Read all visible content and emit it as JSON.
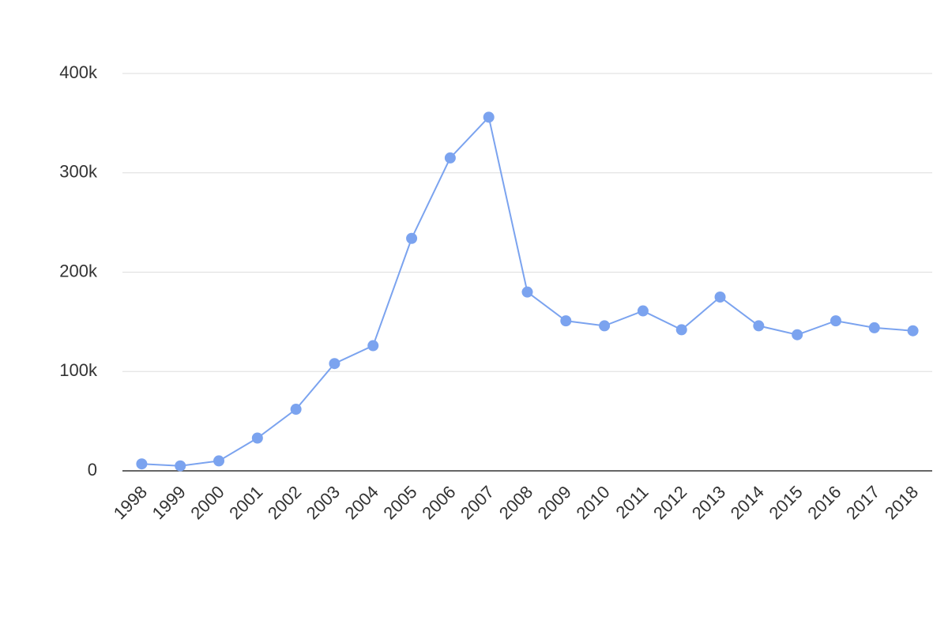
{
  "chart_data": {
    "type": "line",
    "categories": [
      "1998",
      "1999",
      "2000",
      "2001",
      "2002",
      "2003",
      "2004",
      "2005",
      "2006",
      "2007",
      "2008",
      "2009",
      "2010",
      "2011",
      "2012",
      "2013",
      "2014",
      "2015",
      "2016",
      "2017",
      "2018"
    ],
    "values": [
      7000,
      5000,
      10000,
      33000,
      62000,
      108000,
      126000,
      234000,
      315000,
      356000,
      180000,
      151000,
      146000,
      161000,
      142000,
      175000,
      146000,
      137000,
      151000,
      144000,
      141000
    ],
    "color": "#7ba3ef",
    "ylim": [
      0,
      400000
    ],
    "yticks": [
      0,
      {
        "value": 100000,
        "label": "100k"
      },
      {
        "value": 200000,
        "label": "200k"
      },
      {
        "value": 300000,
        "label": "300k"
      },
      {
        "value": 400000,
        "label": "400k"
      }
    ],
    "grid": true
  }
}
